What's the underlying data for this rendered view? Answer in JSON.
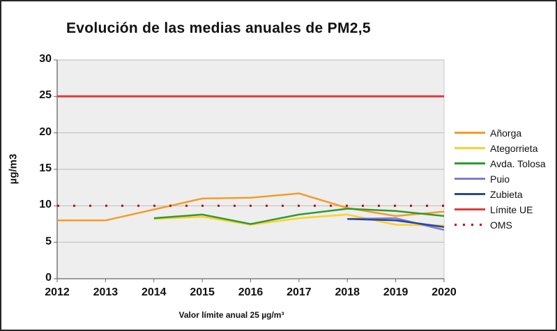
{
  "window": {
    "background": "#ffffff",
    "border_color": "#262626"
  },
  "chart_data": {
    "type": "line",
    "title": "Evolución de las medias anuales de PM2,5",
    "ylabel": "µg/m3",
    "xlabel": "Valor límite anual 25 µg/m³",
    "categories": [
      "2012",
      "2013",
      "2014",
      "2015",
      "2016",
      "2017",
      "2018",
      "2019",
      "2020"
    ],
    "ylim": [
      0,
      30
    ],
    "y_ticks": [
      0,
      5,
      10,
      15,
      20,
      25,
      30
    ],
    "grid": true,
    "legend_position": "right",
    "plot_background": "#EEEEEE",
    "grid_color": "#BBBBBB",
    "axis_color": "#666666",
    "series": [
      {
        "name": "Añorga",
        "color": "#F59B28",
        "style": "solid",
        "width": 2.5,
        "values": [
          8.0,
          8.0,
          9.5,
          11.0,
          11.1,
          11.7,
          9.7,
          8.6,
          9.2
        ]
      },
      {
        "name": "Ategorrieta",
        "color": "#FFD029",
        "style": "solid",
        "width": 2.5,
        "values": [
          null,
          null,
          8.2,
          8.5,
          7.4,
          8.3,
          8.8,
          7.4,
          7.3
        ]
      },
      {
        "name": "Avda. Tolosa",
        "color": "#2E9B2E",
        "style": "solid",
        "width": 2.5,
        "values": [
          null,
          null,
          8.3,
          8.8,
          7.5,
          8.8,
          9.6,
          9.3,
          8.6
        ]
      },
      {
        "name": "Puio",
        "color": "#7C7CCE",
        "style": "solid",
        "width": 2.5,
        "values": [
          null,
          null,
          null,
          null,
          null,
          null,
          8.2,
          8.3,
          6.7
        ]
      },
      {
        "name": "Zubieta",
        "color": "#27499B",
        "style": "solid",
        "width": 2.5,
        "values": [
          null,
          null,
          null,
          null,
          null,
          null,
          8.2,
          8.0,
          7.1
        ]
      },
      {
        "name": "Límite UE",
        "color": "#DE3B3B",
        "style": "solid",
        "width": 3,
        "values": [
          25,
          25,
          25,
          25,
          25,
          25,
          25,
          25,
          25
        ]
      },
      {
        "name": "OMS",
        "color": "#C00000",
        "style": "dotted",
        "width": 3,
        "values": [
          10,
          10,
          10,
          10,
          10,
          10,
          10,
          10,
          10
        ]
      }
    ]
  }
}
